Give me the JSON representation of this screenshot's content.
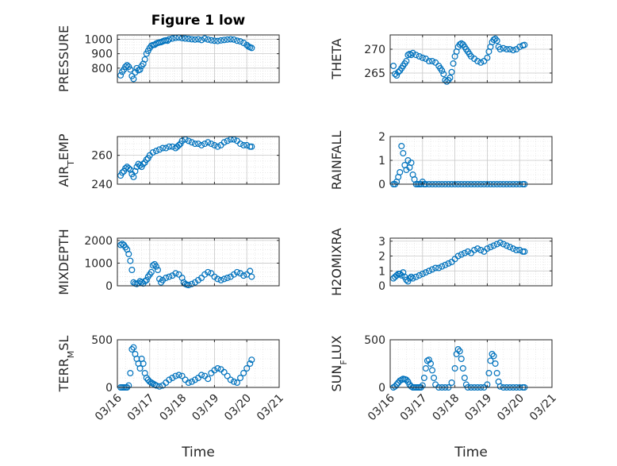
{
  "figure": {
    "title": "Figure 1 low",
    "xlabel": "Time",
    "marker_color": "#0072bd",
    "grid": "on (major + minor, dotted)"
  },
  "chart_data": [
    {
      "id": "pressure",
      "type": "scatter",
      "ylabel": "PRESSURE",
      "ylim": [
        700,
        1030
      ],
      "yticks": [
        800,
        900,
        1000
      ],
      "x": [
        16.1,
        16.15,
        16.2,
        16.25,
        16.3,
        16.35,
        16.4,
        16.45,
        16.5,
        16.55,
        16.6,
        16.65,
        16.7,
        16.75,
        16.8,
        16.85,
        16.9,
        16.95,
        17.0,
        17.05,
        17.1,
        17.15,
        17.2,
        17.25,
        17.3,
        17.35,
        17.4,
        17.45,
        17.5,
        17.55,
        17.6,
        17.7,
        17.8,
        17.9,
        18.0,
        18.1,
        18.2,
        18.3,
        18.4,
        18.5,
        18.6,
        18.7,
        18.8,
        18.9,
        19.0,
        19.1,
        19.2,
        19.3,
        19.4,
        19.5,
        19.6,
        19.7,
        19.8,
        19.9,
        20.0,
        20.05,
        20.1,
        20.15
      ],
      "y": [
        750,
        775,
        790,
        810,
        820,
        810,
        790,
        745,
        725,
        770,
        800,
        785,
        790,
        815,
        830,
        860,
        900,
        920,
        940,
        955,
        960,
        962,
        970,
        975,
        978,
        980,
        985,
        990,
        992,
        990,
        1000,
        1005,
        1010,
        1012,
        1008,
        1005,
        1003,
        1000,
        998,
        1000,
        995,
        1005,
        998,
        993,
        990,
        988,
        992,
        995,
        998,
        1000,
        998,
        990,
        985,
        975,
        960,
        950,
        945,
        940
      ]
    },
    {
      "id": "theta",
      "type": "scatter",
      "ylabel": "THETA",
      "ylim": [
        263,
        273
      ],
      "yticks": [
        265,
        270
      ],
      "x": [
        16.1,
        16.15,
        16.2,
        16.25,
        16.3,
        16.35,
        16.4,
        16.45,
        16.5,
        16.55,
        16.6,
        16.65,
        16.7,
        16.8,
        16.9,
        17.0,
        17.1,
        17.2,
        17.3,
        17.4,
        17.5,
        17.55,
        17.6,
        17.65,
        17.7,
        17.75,
        17.8,
        17.85,
        17.9,
        17.95,
        18.0,
        18.05,
        18.1,
        18.15,
        18.2,
        18.25,
        18.3,
        18.35,
        18.4,
        18.45,
        18.5,
        18.6,
        18.7,
        18.8,
        18.9,
        19.0,
        19.05,
        19.1,
        19.15,
        19.2,
        19.25,
        19.3,
        19.35,
        19.4,
        19.5,
        19.6,
        19.7,
        19.8,
        19.9,
        20.0,
        20.1,
        20.15
      ],
      "y": [
        266.5,
        264.8,
        264.5,
        265.2,
        265.5,
        266,
        266.5,
        267,
        267.5,
        268.8,
        269,
        268.8,
        269.2,
        268.8,
        268.5,
        268.2,
        268,
        267.5,
        267.5,
        267.2,
        266.5,
        266,
        265.5,
        264.8,
        263.5,
        263.2,
        263.5,
        264,
        265.2,
        267,
        268.5,
        269.5,
        270.5,
        271,
        271.2,
        271,
        270.5,
        270,
        269.5,
        269,
        268.5,
        268,
        267.5,
        267.2,
        267.5,
        268.2,
        269.5,
        270.5,
        271.5,
        272,
        272.2,
        271.8,
        270.5,
        270,
        270.2,
        270,
        270,
        269.8,
        270,
        270.5,
        270.8,
        270.9
      ]
    },
    {
      "id": "air_temp",
      "type": "scatter",
      "ylabel": "AIR_TEMP",
      "ylabel_sub": "T",
      "ylim": [
        240,
        273
      ],
      "yticks": [
        240,
        260
      ],
      "x": [
        16.1,
        16.15,
        16.2,
        16.25,
        16.3,
        16.35,
        16.4,
        16.45,
        16.5,
        16.55,
        16.6,
        16.65,
        16.7,
        16.75,
        16.8,
        16.85,
        16.9,
        16.95,
        17.0,
        17.1,
        17.2,
        17.3,
        17.4,
        17.5,
        17.6,
        17.7,
        17.8,
        17.85,
        17.9,
        17.95,
        18.0,
        18.1,
        18.2,
        18.3,
        18.4,
        18.5,
        18.6,
        18.7,
        18.8,
        18.9,
        19.0,
        19.1,
        19.2,
        19.3,
        19.4,
        19.5,
        19.6,
        19.7,
        19.8,
        19.9,
        20.0,
        20.1,
        20.15
      ],
      "y": [
        246,
        248,
        249,
        251,
        252,
        251,
        250,
        247,
        245,
        249,
        252,
        254,
        253,
        252,
        254,
        255,
        257,
        258,
        260,
        262,
        263,
        264,
        265,
        265,
        266,
        266,
        265,
        266,
        267,
        268,
        270,
        271,
        270,
        269,
        268,
        268,
        267,
        268,
        269,
        268,
        267,
        266,
        267,
        269,
        270,
        271,
        271,
        270,
        268,
        267,
        267,
        266,
        266
      ]
    },
    {
      "id": "rainfall",
      "type": "scatter",
      "ylabel": "RAINFALL",
      "ylim": [
        0,
        2
      ],
      "yticks": [
        0,
        1,
        2
      ],
      "x": [
        16.1,
        16.15,
        16.2,
        16.25,
        16.3,
        16.35,
        16.4,
        16.45,
        16.5,
        16.55,
        16.6,
        16.65,
        16.7,
        16.75,
        16.8,
        16.85,
        16.9,
        16.95,
        17.0,
        17.05,
        17.1,
        17.2,
        17.3,
        17.4,
        17.5,
        17.6,
        17.7,
        17.8,
        17.9,
        18.0,
        18.1,
        18.2,
        18.3,
        18.4,
        18.5,
        18.6,
        18.7,
        18.8,
        18.9,
        19.0,
        19.1,
        19.2,
        19.3,
        19.4,
        19.5,
        19.6,
        19.7,
        19.8,
        19.9,
        20.0,
        20.1,
        20.15
      ],
      "y": [
        0,
        0,
        0.1,
        0.3,
        0.5,
        1.6,
        1.3,
        0.8,
        0.6,
        1.0,
        0.7,
        0.9,
        0.4,
        0.2,
        0,
        0,
        0,
        0,
        0.1,
        0,
        0,
        0,
        0,
        0,
        0,
        0,
        0,
        0,
        0,
        0,
        0,
        0,
        0,
        0,
        0,
        0,
        0,
        0,
        0,
        0,
        0,
        0,
        0,
        0,
        0,
        0,
        0,
        0,
        0,
        0,
        0,
        0
      ]
    },
    {
      "id": "mixdepth",
      "type": "scatter",
      "ylabel": "MIXDEPTH",
      "ylim": [
        0,
        2100
      ],
      "yticks": [
        0,
        1000,
        2000
      ],
      "x": [
        16.1,
        16.15,
        16.2,
        16.25,
        16.3,
        16.35,
        16.4,
        16.45,
        16.5,
        16.55,
        16.6,
        16.65,
        16.7,
        16.75,
        16.8,
        16.85,
        16.9,
        16.95,
        17.0,
        17.05,
        17.1,
        17.15,
        17.2,
        17.25,
        17.3,
        17.35,
        17.4,
        17.5,
        17.6,
        17.7,
        17.8,
        17.9,
        18.0,
        18.05,
        18.1,
        18.15,
        18.2,
        18.3,
        18.4,
        18.5,
        18.6,
        18.7,
        18.8,
        18.9,
        19.0,
        19.1,
        19.2,
        19.3,
        19.4,
        19.5,
        19.6,
        19.7,
        19.8,
        19.9,
        20.0,
        20.1,
        20.15
      ],
      "y": [
        1800,
        1850,
        1800,
        1700,
        1600,
        1400,
        1100,
        700,
        150,
        100,
        80,
        120,
        200,
        150,
        100,
        200,
        250,
        400,
        500,
        600,
        900,
        950,
        850,
        700,
        300,
        150,
        250,
        350,
        400,
        450,
        550,
        500,
        350,
        150,
        80,
        50,
        30,
        80,
        150,
        250,
        350,
        500,
        600,
        550,
        400,
        300,
        250,
        300,
        350,
        400,
        500,
        600,
        550,
        450,
        500,
        650,
        400
      ]
    },
    {
      "id": "h2omixra",
      "type": "scatter",
      "ylabel": "H2OMIXRA",
      "ylim": [
        0,
        3.2
      ],
      "yticks": [
        0,
        1,
        2,
        3
      ],
      "x": [
        16.1,
        16.15,
        16.2,
        16.25,
        16.3,
        16.35,
        16.4,
        16.45,
        16.5,
        16.55,
        16.6,
        16.65,
        16.7,
        16.8,
        16.9,
        17.0,
        17.1,
        17.2,
        17.3,
        17.4,
        17.5,
        17.6,
        17.7,
        17.8,
        17.9,
        18.0,
        18.1,
        18.2,
        18.3,
        18.4,
        18.5,
        18.6,
        18.7,
        18.8,
        18.9,
        19.0,
        19.1,
        19.2,
        19.3,
        19.4,
        19.5,
        19.6,
        19.7,
        19.8,
        19.9,
        20.0,
        20.1,
        20.15
      ],
      "y": [
        0.5,
        0.6,
        0.7,
        0.8,
        0.8,
        0.7,
        0.9,
        0.6,
        0.4,
        0.3,
        0.5,
        0.6,
        0.5,
        0.6,
        0.7,
        0.8,
        0.9,
        1.0,
        1.1,
        1.2,
        1.2,
        1.3,
        1.4,
        1.5,
        1.6,
        1.8,
        2.0,
        2.1,
        2.2,
        2.3,
        2.2,
        2.4,
        2.5,
        2.4,
        2.3,
        2.5,
        2.6,
        2.7,
        2.8,
        2.9,
        2.8,
        2.7,
        2.6,
        2.5,
        2.4,
        2.4,
        2.3,
        2.3
      ]
    },
    {
      "id": "terr_msl",
      "type": "scatter",
      "ylabel": "TERR_MSL",
      "ylabel_sub": "M",
      "ylim": [
        0,
        500
      ],
      "yticks": [
        0,
        500
      ],
      "x": [
        16.1,
        16.15,
        16.2,
        16.25,
        16.3,
        16.35,
        16.4,
        16.45,
        16.5,
        16.55,
        16.6,
        16.65,
        16.7,
        16.75,
        16.8,
        16.85,
        16.9,
        16.95,
        17.0,
        17.05,
        17.1,
        17.15,
        17.2,
        17.3,
        17.4,
        17.5,
        17.6,
        17.7,
        17.8,
        17.9,
        18.0,
        18.1,
        18.2,
        18.3,
        18.4,
        18.5,
        18.6,
        18.7,
        18.8,
        18.9,
        19.0,
        19.1,
        19.2,
        19.3,
        19.4,
        19.5,
        19.6,
        19.7,
        19.8,
        19.9,
        20.0,
        20.1,
        20.15
      ],
      "y": [
        0,
        0,
        0,
        0,
        0,
        20,
        150,
        400,
        420,
        350,
        300,
        250,
        200,
        300,
        250,
        150,
        100,
        80,
        60,
        50,
        40,
        30,
        20,
        10,
        20,
        50,
        80,
        100,
        120,
        130,
        120,
        80,
        50,
        60,
        80,
        100,
        130,
        120,
        90,
        150,
        180,
        200,
        190,
        160,
        120,
        80,
        60,
        50,
        100,
        150,
        200,
        250,
        290
      ]
    },
    {
      "id": "sun_flux",
      "type": "scatter",
      "ylabel": "SUN_FLUX",
      "ylabel_sub": "F",
      "ylim": [
        0,
        500
      ],
      "yticks": [
        0,
        500
      ],
      "x": [
        16.1,
        16.15,
        16.2,
        16.25,
        16.3,
        16.35,
        16.4,
        16.45,
        16.5,
        16.55,
        16.6,
        16.65,
        16.7,
        16.75,
        16.8,
        16.85,
        16.9,
        16.95,
        17.0,
        17.05,
        17.1,
        17.15,
        17.2,
        17.25,
        17.3,
        17.35,
        17.4,
        17.5,
        17.6,
        17.7,
        17.8,
        17.9,
        18.0,
        18.05,
        18.1,
        18.15,
        18.2,
        18.25,
        18.3,
        18.35,
        18.4,
        18.5,
        18.6,
        18.7,
        18.8,
        18.9,
        19.0,
        19.05,
        19.1,
        19.15,
        19.2,
        19.25,
        19.3,
        19.35,
        19.4,
        19.5,
        19.6,
        19.7,
        19.8,
        19.9,
        20.0,
        20.1,
        20.15
      ],
      "y": [
        0,
        10,
        30,
        50,
        70,
        80,
        90,
        85,
        80,
        60,
        30,
        10,
        0,
        0,
        0,
        0,
        0,
        0,
        20,
        100,
        200,
        280,
        290,
        250,
        180,
        100,
        30,
        0,
        0,
        0,
        0,
        50,
        200,
        350,
        400,
        380,
        300,
        200,
        100,
        30,
        0,
        0,
        0,
        0,
        0,
        0,
        30,
        150,
        280,
        350,
        330,
        250,
        150,
        60,
        10,
        0,
        0,
        0,
        0,
        0,
        0,
        0,
        0
      ]
    }
  ],
  "x_axis": {
    "domain": [
      16.0,
      21.0
    ],
    "tick_values": [
      16,
      17,
      18,
      19,
      20,
      21
    ],
    "tick_labels": [
      "03/16",
      "03/17",
      "03/18",
      "03/19",
      "03/20",
      "03/21"
    ]
  }
}
